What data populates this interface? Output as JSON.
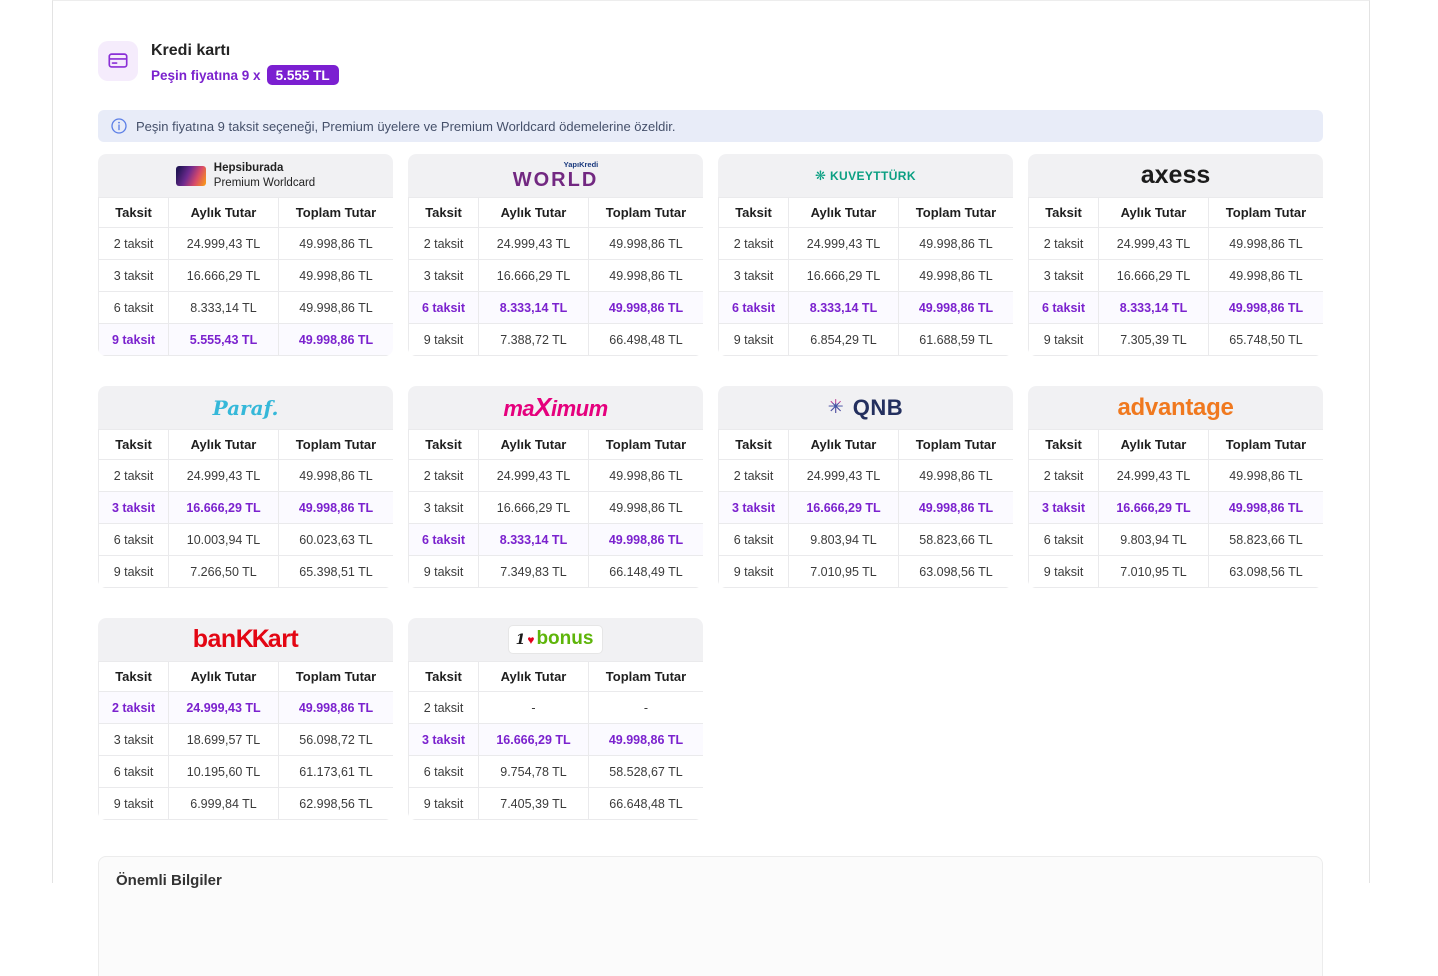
{
  "header": {
    "title": "Kredi kartı",
    "subtitle_prefix": "Peşin fiyatına 9 x",
    "badge": "5.555 TL",
    "accent_color": "#7b1fd1"
  },
  "info_banner": {
    "icon": "info-circle",
    "text": "Peşin fiyatına 9 taksit seçeneği, Premium üyelere ve Premium Worldcard ödemelerine özeldir."
  },
  "columns": [
    "Taksit",
    "Aylık Tutar",
    "Toplam Tutar"
  ],
  "highlight_color": "#7b22ce",
  "banks": [
    {
      "id": "premium-worldcard",
      "name": "Hepsiburada Premium Worldcard",
      "logo": {
        "type": "premium",
        "line1": "Hepsiburada",
        "line2": "Premium Worldcard"
      },
      "rows": [
        {
          "taksit": "2 taksit",
          "aylik": "24.999,43 TL",
          "toplam": "49.998,86 TL",
          "highlight": false
        },
        {
          "taksit": "3 taksit",
          "aylik": "16.666,29 TL",
          "toplam": "49.998,86 TL",
          "highlight": false
        },
        {
          "taksit": "6 taksit",
          "aylik": "8.333,14 TL",
          "toplam": "49.998,86 TL",
          "highlight": false
        },
        {
          "taksit": "9 taksit",
          "aylik": "5.555,43 TL",
          "toplam": "49.998,86 TL",
          "highlight": true
        }
      ]
    },
    {
      "id": "world",
      "name": "World",
      "logo": {
        "type": "world",
        "super": "YapıKredi",
        "super_color": "#1a3a7e",
        "text": "WORLD",
        "color": "#722881"
      },
      "rows": [
        {
          "taksit": "2 taksit",
          "aylik": "24.999,43 TL",
          "toplam": "49.998,86 TL",
          "highlight": false
        },
        {
          "taksit": "3 taksit",
          "aylik": "16.666,29 TL",
          "toplam": "49.998,86 TL",
          "highlight": false
        },
        {
          "taksit": "6 taksit",
          "aylik": "8.333,14 TL",
          "toplam": "49.998,86 TL",
          "highlight": true
        },
        {
          "taksit": "9 taksit",
          "aylik": "7.388,72 TL",
          "toplam": "66.498,48 TL",
          "highlight": false
        }
      ]
    },
    {
      "id": "kuveytturk",
      "name": "KuveytTürk",
      "logo": {
        "type": "kuveytturk",
        "icon": "❋",
        "text": "KUVEYTTÜRK",
        "color": "#0a9f82"
      },
      "rows": [
        {
          "taksit": "2 taksit",
          "aylik": "24.999,43 TL",
          "toplam": "49.998,86 TL",
          "highlight": false
        },
        {
          "taksit": "3 taksit",
          "aylik": "16.666,29 TL",
          "toplam": "49.998,86 TL",
          "highlight": false
        },
        {
          "taksit": "6 taksit",
          "aylik": "8.333,14 TL",
          "toplam": "49.998,86 TL",
          "highlight": true
        },
        {
          "taksit": "9 taksit",
          "aylik": "6.854,29 TL",
          "toplam": "61.688,59 TL",
          "highlight": false
        }
      ]
    },
    {
      "id": "axess",
      "name": "Axess",
      "logo": {
        "type": "axess",
        "text": "axess",
        "color": "#1c1c1c"
      },
      "rows": [
        {
          "taksit": "2 taksit",
          "aylik": "24.999,43 TL",
          "toplam": "49.998,86 TL",
          "highlight": false
        },
        {
          "taksit": "3 taksit",
          "aylik": "16.666,29 TL",
          "toplam": "49.998,86 TL",
          "highlight": false
        },
        {
          "taksit": "6 taksit",
          "aylik": "8.333,14 TL",
          "toplam": "49.998,86 TL",
          "highlight": true
        },
        {
          "taksit": "9 taksit",
          "aylik": "7.305,39 TL",
          "toplam": "65.748,50 TL",
          "highlight": false
        }
      ]
    },
    {
      "id": "paraf",
      "name": "Paraf",
      "logo": {
        "type": "paraf",
        "text": "Paraf.",
        "color": "#35b8d9"
      },
      "rows": [
        {
          "taksit": "2 taksit",
          "aylik": "24.999,43 TL",
          "toplam": "49.998,86 TL",
          "highlight": false
        },
        {
          "taksit": "3 taksit",
          "aylik": "16.666,29 TL",
          "toplam": "49.998,86 TL",
          "highlight": true
        },
        {
          "taksit": "6 taksit",
          "aylik": "10.003,94 TL",
          "toplam": "60.023,63 TL",
          "highlight": false
        },
        {
          "taksit": "9 taksit",
          "aylik": "7.266,50 TL",
          "toplam": "65.398,51 TL",
          "highlight": false
        }
      ]
    },
    {
      "id": "maximum",
      "name": "Maximum",
      "logo": {
        "type": "maximum",
        "pre": "ma",
        "x": "X",
        "post": "imum",
        "color": "#e5007d"
      },
      "rows": [
        {
          "taksit": "2 taksit",
          "aylik": "24.999,43 TL",
          "toplam": "49.998,86 TL",
          "highlight": false
        },
        {
          "taksit": "3 taksit",
          "aylik": "16.666,29 TL",
          "toplam": "49.998,86 TL",
          "highlight": false
        },
        {
          "taksit": "6 taksit",
          "aylik": "8.333,14 TL",
          "toplam": "49.998,86 TL",
          "highlight": true
        },
        {
          "taksit": "9 taksit",
          "aylik": "7.349,83 TL",
          "toplam": "66.148,49 TL",
          "highlight": false
        }
      ]
    },
    {
      "id": "qnb",
      "name": "QNB",
      "logo": {
        "type": "qnb",
        "star": "✳",
        "text": "QNB",
        "color": "#232f5e",
        "star_blue": "#3d59a7",
        "star_pink": "#b5338a"
      },
      "rows": [
        {
          "taksit": "2 taksit",
          "aylik": "24.999,43 TL",
          "toplam": "49.998,86 TL",
          "highlight": false
        },
        {
          "taksit": "3 taksit",
          "aylik": "16.666,29 TL",
          "toplam": "49.998,86 TL",
          "highlight": true
        },
        {
          "taksit": "6 taksit",
          "aylik": "9.803,94 TL",
          "toplam": "58.823,66 TL",
          "highlight": false
        },
        {
          "taksit": "9 taksit",
          "aylik": "7.010,95 TL",
          "toplam": "63.098,56 TL",
          "highlight": false
        }
      ]
    },
    {
      "id": "advantage",
      "name": "Advantage",
      "logo": {
        "type": "advantage",
        "text": "advantage",
        "color": "#f0791f"
      },
      "rows": [
        {
          "taksit": "2 taksit",
          "aylik": "24.999,43 TL",
          "toplam": "49.998,86 TL",
          "highlight": false
        },
        {
          "taksit": "3 taksit",
          "aylik": "16.666,29 TL",
          "toplam": "49.998,86 TL",
          "highlight": true
        },
        {
          "taksit": "6 taksit",
          "aylik": "9.803,94 TL",
          "toplam": "58.823,66 TL",
          "highlight": false
        },
        {
          "taksit": "9 taksit",
          "aylik": "7.010,95 TL",
          "toplam": "63.098,56 TL",
          "highlight": false
        }
      ]
    },
    {
      "id": "bankkart",
      "name": "Bankkart",
      "logo": {
        "type": "bankkart",
        "pre": "ban",
        "mid": "KK",
        "post": "art",
        "color": "#e30613"
      },
      "rows": [
        {
          "taksit": "2 taksit",
          "aylik": "24.999,43 TL",
          "toplam": "49.998,86 TL",
          "highlight": true
        },
        {
          "taksit": "3 taksit",
          "aylik": "18.699,57 TL",
          "toplam": "56.098,72 TL",
          "highlight": false
        },
        {
          "taksit": "6 taksit",
          "aylik": "10.195,60 TL",
          "toplam": "61.173,61 TL",
          "highlight": false
        },
        {
          "taksit": "9 taksit",
          "aylik": "6.999,84 TL",
          "toplam": "62.998,56 TL",
          "highlight": false
        }
      ]
    },
    {
      "id": "bonus",
      "name": "Bonus",
      "logo": {
        "type": "bonus",
        "one": "1",
        "heart": "♥",
        "heart_color": "#e3001b",
        "text": "bonus",
        "color": "#5eb50a"
      },
      "rows": [
        {
          "taksit": "2 taksit",
          "aylik": "-",
          "toplam": "-",
          "highlight": false
        },
        {
          "taksit": "3 taksit",
          "aylik": "16.666,29 TL",
          "toplam": "49.998,86 TL",
          "highlight": true
        },
        {
          "taksit": "6 taksit",
          "aylik": "9.754,78 TL",
          "toplam": "58.528,67 TL",
          "highlight": false
        },
        {
          "taksit": "9 taksit",
          "aylik": "7.405,39 TL",
          "toplam": "66.648,48 TL",
          "highlight": false
        }
      ]
    }
  ],
  "footer": {
    "title": "Önemli Bilgiler"
  }
}
